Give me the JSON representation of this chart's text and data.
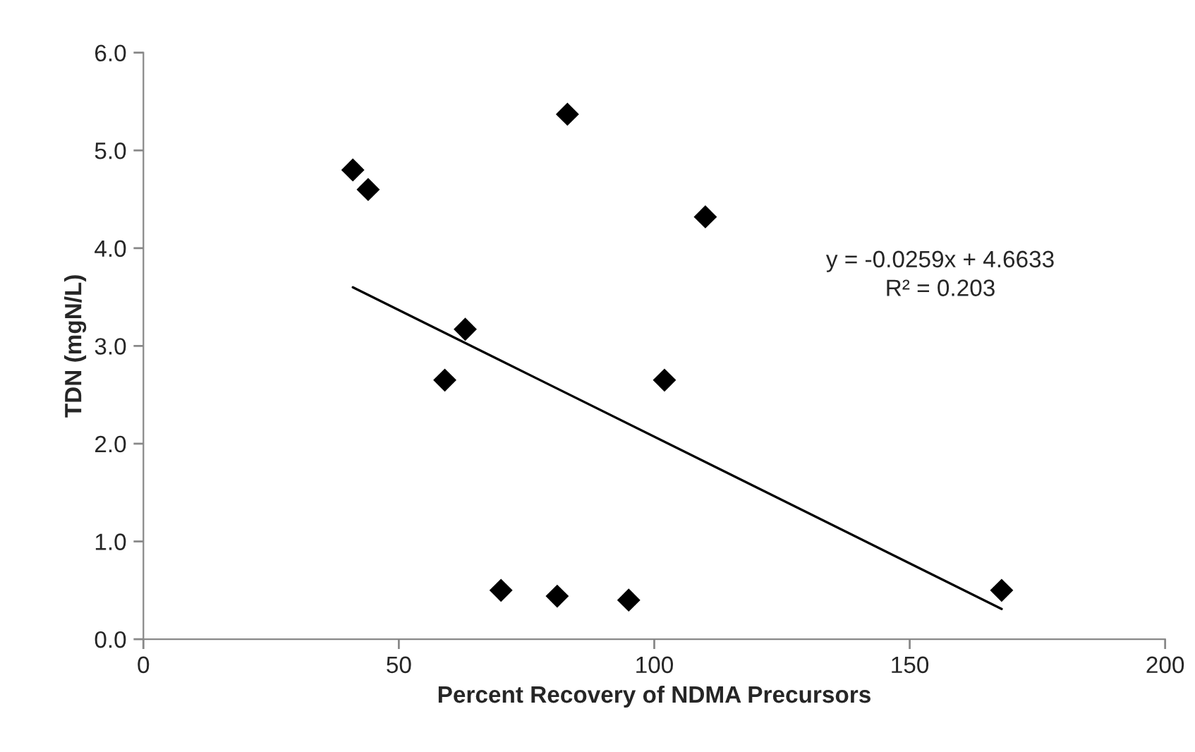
{
  "chart_data": {
    "type": "scatter",
    "xlabel": "Percent Recovery of NDMA Precursors",
    "ylabel": "TDN (mgN/L)",
    "xlim": [
      0,
      200
    ],
    "xticks": [
      0,
      50,
      100,
      150,
      200
    ],
    "ylim": [
      0,
      6
    ],
    "yticks": [
      {
        "value": 0,
        "label": "0.0"
      },
      {
        "value": 1,
        "label": "1.0"
      },
      {
        "value": 2,
        "label": "2.0"
      },
      {
        "value": 3,
        "label": "3.0"
      },
      {
        "value": 4,
        "label": "4.0"
      },
      {
        "value": 5,
        "label": "5.0"
      },
      {
        "value": 6,
        "label": "6.0"
      }
    ],
    "grid": false,
    "legend": false,
    "series": [
      {
        "marker": "diamond",
        "color": "#000000",
        "x": [
          41,
          44,
          59,
          63,
          70,
          81,
          83,
          95,
          102,
          110,
          168
        ],
        "values": [
          4.8,
          4.6,
          2.65,
          3.17,
          0.5,
          0.44,
          5.37,
          0.4,
          2.65,
          4.32,
          0.5
        ]
      },
      {
        "type": "line",
        "color": "#000000",
        "line_style": "solid",
        "x": [
          41,
          168
        ],
        "values": [
          3.6,
          0.31
        ]
      }
    ],
    "annotations": [
      "y = -0.0259x + 4.6633\nR² = 0.203"
    ]
  }
}
